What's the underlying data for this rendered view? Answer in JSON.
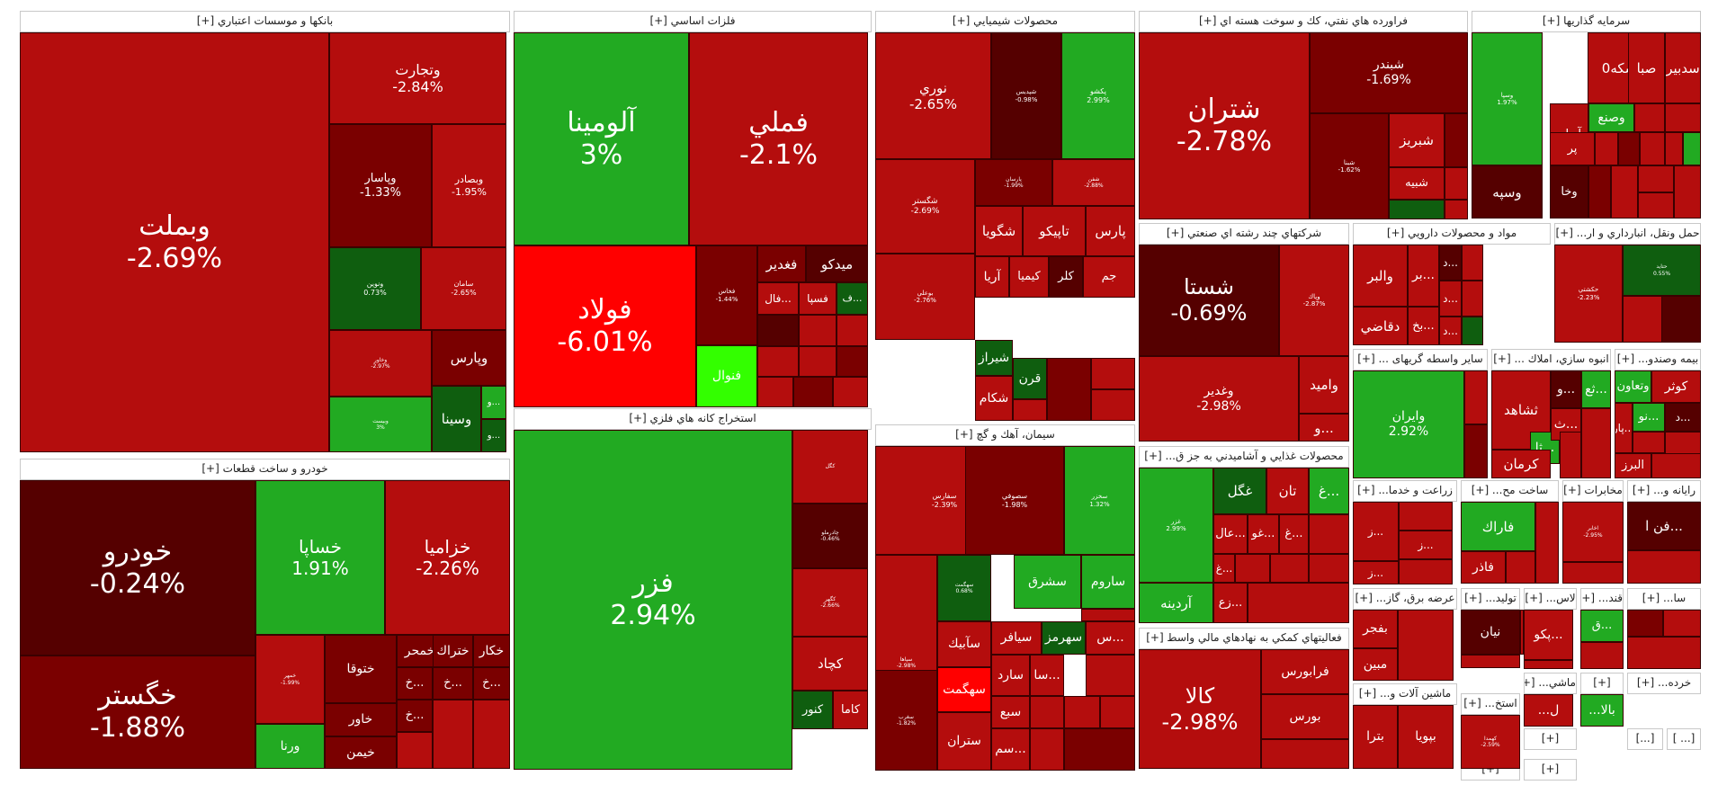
{
  "chart_data": {
    "type": "treemap",
    "title": "Tehran Stock Exchange Market Map",
    "colors": {
      "strong_green": "#33ff00",
      "green": "#22aa22",
      "dark_green": "#0f5e0f",
      "neutral_dark": "#550000",
      "dark_red": "#7a0000",
      "red": "#b40d0d",
      "strong_red": "#ff0000"
    },
    "sectors": [
      {
        "name": "بانكها و موسسات اعتباري [+]",
        "stocks": [
          {
            "symbol": "وبملت",
            "change": "-2.69%"
          },
          {
            "symbol": "وتجارت",
            "change": "-2.84%"
          },
          {
            "symbol": "وپاسار",
            "change": "-1.33%"
          },
          {
            "symbol": "وبصادر",
            "change": "-1.95%"
          },
          {
            "symbol": "ونوين",
            "change": "0.73%"
          },
          {
            "symbol": "سامان",
            "change": "-2.65%"
          },
          {
            "symbol": "وپارس",
            "change": ""
          },
          {
            "symbol": "وخاور",
            "change": "-2.97%"
          },
          {
            "symbol": "وسينا",
            "change": ""
          },
          {
            "symbol": "وبيست",
            "change": "3%"
          },
          {
            "symbol": "و...",
            "change": ""
          },
          {
            "symbol": "و...",
            "change": ""
          }
        ]
      },
      {
        "name": "فلزات اساسي [+]",
        "stocks": [
          {
            "symbol": "آلومينا",
            "change": "3%"
          },
          {
            "symbol": "فملي",
            "change": "-2.1%"
          },
          {
            "symbol": "فولاد",
            "change": "-6.01%"
          },
          {
            "symbol": "فخاس",
            "change": "-1.44%"
          },
          {
            "symbol": "فغدير",
            "change": ""
          },
          {
            "symbol": "ميدكو",
            "change": ""
          },
          {
            "symbol": "فسپا",
            "change": ""
          },
          {
            "symbol": "فال...",
            "change": ""
          },
          {
            "symbol": "ف...",
            "change": ""
          },
          {
            "symbol": "فنوال",
            "change": ""
          }
        ]
      },
      {
        "name": "استخراج كانه هاي فلزي [+]",
        "stocks": [
          {
            "symbol": "فزر",
            "change": "2.94%"
          },
          {
            "symbol": "كگل",
            "change": ""
          },
          {
            "symbol": "چادرملو",
            "change": "-0.46%"
          },
          {
            "symbol": "كگهر",
            "change": "-2.66%"
          },
          {
            "symbol": "كچاد",
            "change": ""
          },
          {
            "symbol": "كاما",
            "change": ""
          },
          {
            "symbol": "كنور",
            "change": ""
          }
        ]
      },
      {
        "name": "محصولات شيميايي [+]",
        "stocks": [
          {
            "symbol": "نوري",
            "change": "-2.65%"
          },
          {
            "symbol": "شپديس",
            "change": "-0.98%"
          },
          {
            "symbol": "پكشو",
            "change": "2.99%"
          },
          {
            "symbol": "شگستر",
            "change": "-2.69%"
          },
          {
            "symbol": "پارسان",
            "change": "-1.99%"
          },
          {
            "symbol": "شفن",
            "change": "-2.88%"
          },
          {
            "symbol": "بوعلي",
            "change": "-2.76%"
          },
          {
            "symbol": "شگويا",
            "change": ""
          },
          {
            "symbol": "تاپيكو",
            "change": ""
          },
          {
            "symbol": "پارس",
            "change": ""
          },
          {
            "symbol": "آريا",
            "change": ""
          },
          {
            "symbol": "كيميا",
            "change": ""
          },
          {
            "symbol": "كلر",
            "change": ""
          },
          {
            "symbol": "جم",
            "change": ""
          },
          {
            "symbol": "فارس",
            "change": "-1.28%"
          },
          {
            "symbol": "شيراز",
            "change": ""
          },
          {
            "symbol": "شكام",
            "change": ""
          },
          {
            "symbol": "قرن",
            "change": ""
          }
        ]
      },
      {
        "name": "فراورده هاي نفتي، كك و سوخت هسته اي [+]",
        "stocks": [
          {
            "symbol": "شتران",
            "change": "-2.78%"
          },
          {
            "symbol": "شبندر",
            "change": "-1.69%"
          },
          {
            "symbol": "شبنا",
            "change": "-1.62%"
          },
          {
            "symbol": "شبريز",
            "change": ""
          },
          {
            "symbol": "شبيه",
            "change": ""
          }
        ]
      },
      {
        "name": "سرمايه گذاريها [+]",
        "stocks": [
          {
            "symbol": "وسپا",
            "change": "1.97%"
          },
          {
            "symbol": "سكه0",
            "change": ""
          },
          {
            "symbol": "صبا",
            "change": ""
          },
          {
            "symbol": "سدبير",
            "change": ""
          },
          {
            "symbol": "وصنع",
            "change": ""
          },
          {
            "symbol": "آريان",
            "change": ""
          },
          {
            "symbol": "پر",
            "change": ""
          },
          {
            "symbol": "وخا",
            "change": ""
          },
          {
            "symbol": "وسپه",
            "change": ""
          }
        ]
      },
      {
        "name": "شركتهاي چند رشته اي صنعتي [+]",
        "stocks": [
          {
            "symbol": "شستا",
            "change": "-0.69%"
          },
          {
            "symbol": "وپاك",
            "change": "-2.87%"
          },
          {
            "symbol": "وغدير",
            "change": "-2.98%"
          },
          {
            "symbol": "واميد",
            "change": ""
          },
          {
            "symbol": "و...",
            "change": ""
          }
        ]
      },
      {
        "name": "مواد و محصولات دارويي [+]",
        "stocks": [
          {
            "symbol": "والبر",
            "change": ""
          },
          {
            "symbol": "بر...",
            "change": ""
          },
          {
            "symbol": "د...",
            "change": ""
          },
          {
            "symbol": "دقاضي",
            "change": ""
          },
          {
            "symbol": "بخ...",
            "change": ""
          },
          {
            "symbol": "د...",
            "change": ""
          },
          {
            "symbol": "د...",
            "change": ""
          },
          {
            "symbol": "و...",
            "change": ""
          }
        ]
      },
      {
        "name": "حمل ونقل، انبارداري و ار... [+]",
        "stocks": [
          {
            "symbol": "حكشتي",
            "change": "-2.23%"
          },
          {
            "symbol": "حتايد",
            "change": "0.55%"
          }
        ]
      },
      {
        "name": "سایر واسطه گریهای ... [+]",
        "stocks": [
          {
            "symbol": "وايران",
            "change": "2.92%"
          }
        ]
      },
      {
        "name": "انبوه سازي، املاك ... [+]",
        "stocks": [
          {
            "symbol": "ثشاهد",
            "change": ""
          },
          {
            "symbol": "ثا...",
            "change": ""
          },
          {
            "symbol": "و...",
            "change": ""
          },
          {
            "symbol": "ثع...",
            "change": ""
          },
          {
            "symbol": "ث...",
            "change": ""
          },
          {
            "symbol": "كرمان",
            "change": ""
          }
        ]
      },
      {
        "name": "بيمه وصندو... [+]",
        "stocks": [
          {
            "symbol": "كوثر",
            "change": ""
          },
          {
            "symbol": "وتعاون",
            "change": ""
          },
          {
            "symbol": "نو...",
            "change": ""
          },
          {
            "symbol": "د...",
            "change": ""
          },
          {
            "symbol": "پار...",
            "change": ""
          },
          {
            "symbol": "البرز",
            "change": ""
          }
        ]
      },
      {
        "name": "خودرو و ساخت قطعات [+]",
        "stocks": [
          {
            "symbol": "خودرو",
            "change": "-0.24%"
          },
          {
            "symbol": "خساپا",
            "change": "1.91%"
          },
          {
            "symbol": "خزاميا",
            "change": "-2.26%"
          },
          {
            "symbol": "خگستر",
            "change": "-1.88%"
          },
          {
            "symbol": "خمهر",
            "change": "-1.99%"
          },
          {
            "symbol": "ختوقا",
            "change": ""
          },
          {
            "symbol": "خمحر",
            "change": ""
          },
          {
            "symbol": "ختراك",
            "change": ""
          },
          {
            "symbol": "خكار",
            "change": ""
          },
          {
            "symbol": "خاور",
            "change": ""
          },
          {
            "symbol": "خيمن",
            "change": ""
          },
          {
            "symbol": "ورنا",
            "change": ""
          },
          {
            "symbol": "خ...",
            "change": ""
          },
          {
            "symbol": "خ...",
            "change": ""
          },
          {
            "symbol": "خ...",
            "change": ""
          },
          {
            "symbol": "خ...",
            "change": ""
          }
        ]
      },
      {
        "name": "سيمان، آهك و گچ [+]",
        "stocks": [
          {
            "symbol": "سفارس",
            "change": "-2.39%"
          },
          {
            "symbol": "سصوفي",
            "change": "-1.98%"
          },
          {
            "symbol": "سخزر",
            "change": "1.32%"
          },
          {
            "symbol": "سشرق",
            "change": ""
          },
          {
            "symbol": "ساروم",
            "change": ""
          },
          {
            "symbol": "سهگمت",
            "change": "0.68%"
          },
          {
            "symbol": "سپاها",
            "change": "-2.98%"
          },
          {
            "symbol": "سآبيك",
            "change": ""
          },
          {
            "symbol": "سيافر",
            "change": ""
          },
          {
            "symbol": "سهرمز",
            "change": ""
          },
          {
            "symbol": "س...",
            "change": ""
          },
          {
            "symbol": "سهگمت",
            "change": ""
          },
          {
            "symbol": "سارد",
            "change": ""
          },
          {
            "symbol": "سا...",
            "change": ""
          },
          {
            "symbol": "سبع",
            "change": ""
          },
          {
            "symbol": "سغرب",
            "change": "-1.82%"
          },
          {
            "symbol": "ستران",
            "change": ""
          },
          {
            "symbol": "سم...",
            "change": ""
          }
        ]
      },
      {
        "name": "محصولات غذايي و آشاميدني به جز ق... [+]",
        "stocks": [
          {
            "symbol": "غزر",
            "change": "2.99%"
          },
          {
            "symbol": "غگل",
            "change": ""
          },
          {
            "symbol": "تان",
            "change": ""
          },
          {
            "symbol": "غ...",
            "change": ""
          },
          {
            "symbol": "عال...",
            "change": ""
          },
          {
            "symbol": "غو...",
            "change": ""
          },
          {
            "symbol": "غ...",
            "change": ""
          },
          {
            "symbol": "غ...",
            "change": ""
          },
          {
            "symbol": "آردينه",
            "change": ""
          },
          {
            "symbol": "زع...",
            "change": ""
          }
        ]
      },
      {
        "name": "فعاليتهاي كمكي به نهادهاي مالي واسط [+]",
        "stocks": [
          {
            "symbol": "كالا",
            "change": "-2.98%"
          },
          {
            "symbol": "فرابورس",
            "change": ""
          },
          {
            "symbol": "بورس",
            "change": ""
          }
        ]
      },
      {
        "name": "زراعت و خدما... [+]",
        "stocks": [
          {
            "symbol": "ز...",
            "change": ""
          },
          {
            "symbol": "ز...",
            "change": ""
          },
          {
            "symbol": "ز...",
            "change": ""
          }
        ]
      },
      {
        "name": "ساخت مح... [+]",
        "stocks": [
          {
            "symbol": "فاراك",
            "change": ""
          },
          {
            "symbol": "فاذر",
            "change": ""
          }
        ]
      },
      {
        "name": "مخابرات [+]",
        "stocks": [
          {
            "symbol": "اخابر",
            "change": "-2.95%"
          }
        ]
      },
      {
        "name": "رايانه و... [+]",
        "stocks": [
          {
            "symbol": "فن ا...",
            "change": ""
          }
        ]
      },
      {
        "name": "عرضه برق، گاز... [+]",
        "stocks": [
          {
            "symbol": "بفجر",
            "change": ""
          },
          {
            "symbol": "مبين",
            "change": ""
          }
        ]
      },
      {
        "name": "توليد... [+]",
        "stocks": [
          {
            "symbol": "نيان",
            "change": ""
          }
        ]
      },
      {
        "name": "لاس... [+]",
        "stocks": [
          {
            "symbol": "پكو...",
            "change": ""
          }
        ]
      },
      {
        "name": "قند... [+]",
        "stocks": [
          {
            "symbol": "ق...",
            "change": ""
          }
        ]
      },
      {
        "name": "سا... [+]",
        "stocks": []
      },
      {
        "name": "ماشين آلات و... [+]",
        "stocks": [
          {
            "symbol": "بترا",
            "change": ""
          },
          {
            "symbol": "بپويا",
            "change": ""
          }
        ]
      },
      {
        "name": "استخ... [+]",
        "stocks": [
          {
            "symbol": "كهمدا",
            "change": "-2.59%"
          }
        ]
      },
      {
        "name": "ماشي... [+]",
        "stocks": [
          {
            "symbol": "...ل",
            "change": ""
          }
        ]
      },
      {
        "name": "[+]",
        "stocks": [
          {
            "symbol": "...بالا",
            "change": ""
          }
        ]
      },
      {
        "name": "خرده... [+]",
        "stocks": []
      },
      {
        "name": "[+] ",
        "stocks": []
      },
      {
        "name": "[...]",
        "stocks": []
      },
      {
        "name": "[... ]",
        "stocks": []
      },
      {
        "name": "[+]  ",
        "stocks": []
      },
      {
        "name": "[+]   ",
        "stocks": []
      }
    ]
  }
}
